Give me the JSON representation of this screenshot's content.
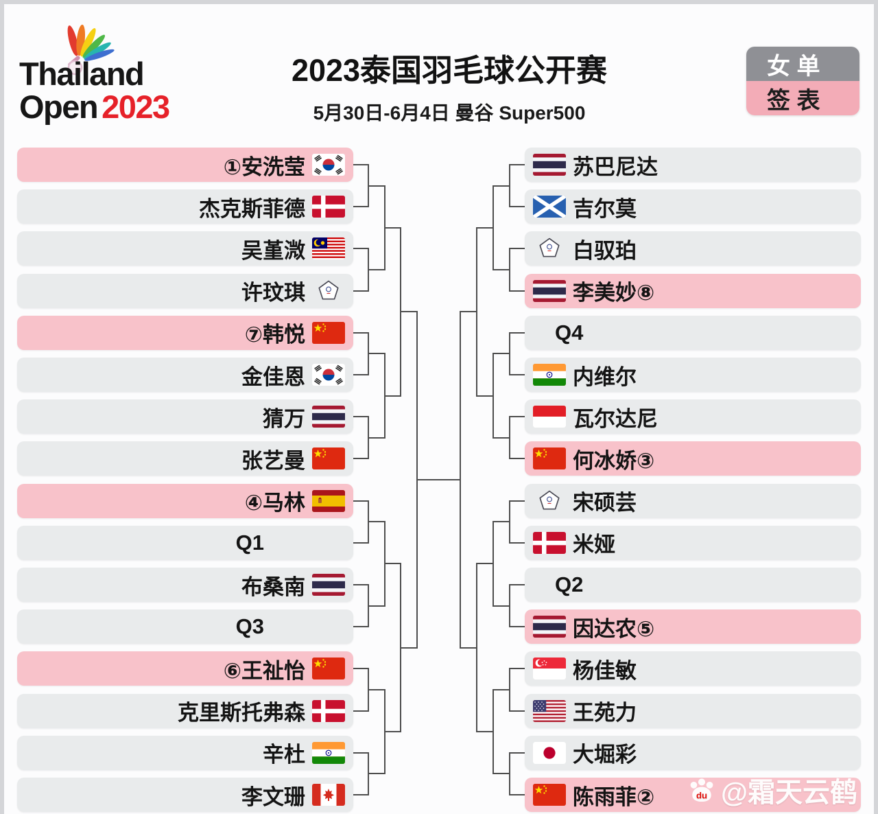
{
  "header": {
    "logo": {
      "line1": "Thailand",
      "line2": "Open",
      "year": "2023",
      "icon": "shuttlecock-icon"
    },
    "title": "2023泰国羽毛球公开赛",
    "subtitle": "5月30日-6月4日 曼谷 Super500",
    "badge": {
      "top": "女 单",
      "bottom": "签 表",
      "top_bg": "#8f9095",
      "bottom_bg": "#f3acb7"
    }
  },
  "colors": {
    "seeded_row": "#f8c2ca",
    "row": "#e9ebec",
    "line": "#4d4d4d"
  },
  "bracket": {
    "left": [
      {
        "name": "①安洗莹",
        "flag": "kor",
        "seeded": true
      },
      {
        "name": "杰克斯菲德",
        "flag": "den",
        "seeded": false
      },
      {
        "name": "吴堇溦",
        "flag": "mas",
        "seeded": false
      },
      {
        "name": "许玟琪",
        "flag": "tpe",
        "seeded": false
      },
      {
        "name": "⑦韩悦",
        "flag": "chn",
        "seeded": true
      },
      {
        "name": "金佳恩",
        "flag": "kor",
        "seeded": false
      },
      {
        "name": "猜万",
        "flag": "tha",
        "seeded": false
      },
      {
        "name": "张艺曼",
        "flag": "chn",
        "seeded": false
      },
      {
        "name": "④马林",
        "flag": "esp",
        "seeded": true
      },
      {
        "name": "Q1",
        "flag": "none",
        "seeded": false
      },
      {
        "name": "布桑南",
        "flag": "tha",
        "seeded": false
      },
      {
        "name": "Q3",
        "flag": "none",
        "seeded": false
      },
      {
        "name": "⑥王祉怡",
        "flag": "chn",
        "seeded": true
      },
      {
        "name": "克里斯托弗森",
        "flag": "den",
        "seeded": false
      },
      {
        "name": "辛杜",
        "flag": "ind",
        "seeded": false
      },
      {
        "name": "李文珊",
        "flag": "can",
        "seeded": false
      }
    ],
    "right": [
      {
        "name": "苏巴尼达",
        "flag": "tha",
        "seeded": false
      },
      {
        "name": "吉尔莫",
        "flag": "sco",
        "seeded": false
      },
      {
        "name": "白驭珀",
        "flag": "tpe",
        "seeded": false
      },
      {
        "name": "李美妙⑧",
        "flag": "tha",
        "seeded": true
      },
      {
        "name": "Q4",
        "flag": "none",
        "seeded": false
      },
      {
        "name": "内维尔",
        "flag": "ind",
        "seeded": false
      },
      {
        "name": "瓦尔达尼",
        "flag": "ina",
        "seeded": false
      },
      {
        "name": "何冰娇③",
        "flag": "chn",
        "seeded": true
      },
      {
        "name": "宋硕芸",
        "flag": "tpe",
        "seeded": false
      },
      {
        "name": "米娅",
        "flag": "den",
        "seeded": false
      },
      {
        "name": "Q2",
        "flag": "none",
        "seeded": false
      },
      {
        "name": "因达农⑤",
        "flag": "tha",
        "seeded": true
      },
      {
        "name": "杨佳敏",
        "flag": "sgp",
        "seeded": false
      },
      {
        "name": "王苑力",
        "flag": "usa",
        "seeded": false
      },
      {
        "name": "大堀彩",
        "flag": "jpn",
        "seeded": false
      },
      {
        "name": "陈雨菲②",
        "flag": "chn",
        "seeded": true
      }
    ]
  },
  "watermark": {
    "text": "@霜天云鹤",
    "icon": "baidu-paw-icon"
  }
}
